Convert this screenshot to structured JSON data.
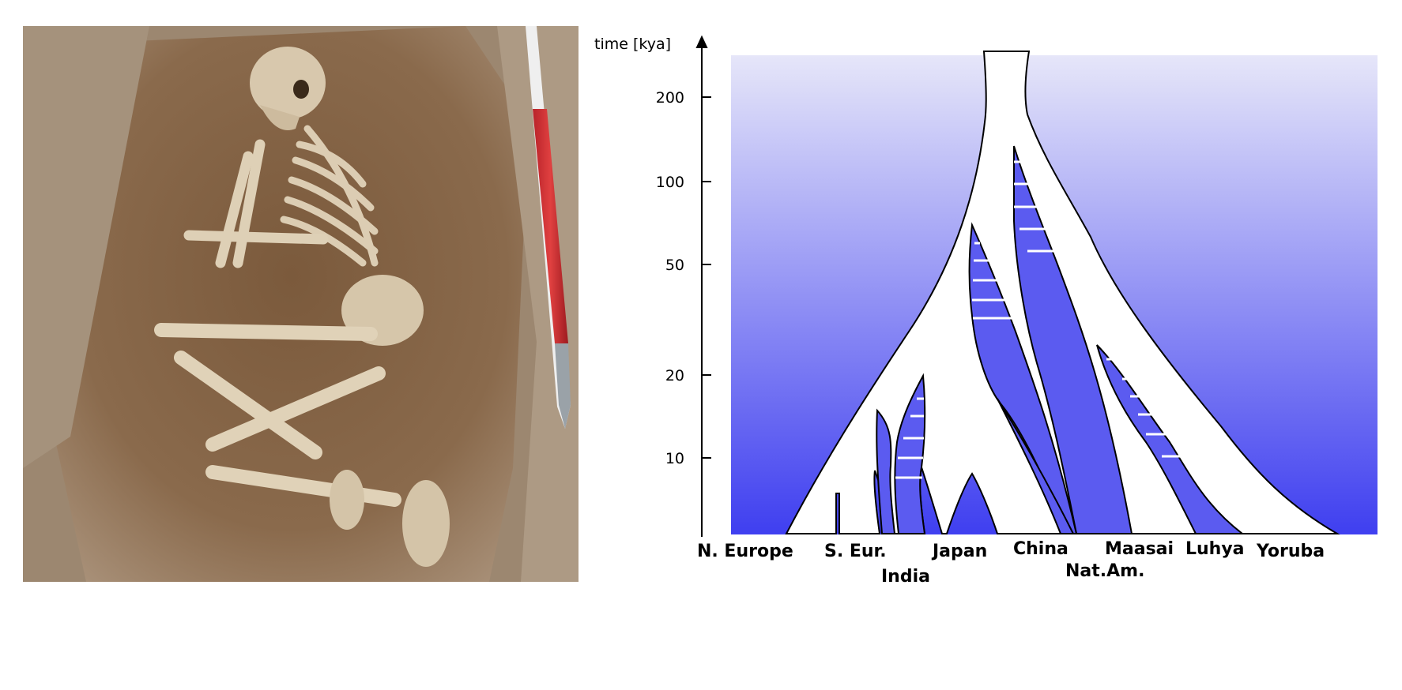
{
  "figure": {
    "photo": {
      "icon": "excavated-skeleton-in-grave-with-scale-rod"
    },
    "tree": {
      "axis": {
        "title": "time [kya]",
        "ticks": [
          "200",
          "100",
          "50",
          "20",
          "10"
        ]
      },
      "populations": [
        "N. Europe",
        "S. Eur.",
        "India",
        "Japan",
        "China",
        "Nat.Am.",
        "Maasai",
        "Luhya",
        "Yoruba"
      ],
      "colors": {
        "background_top": "#e6e6f9",
        "background_bottom": "#3f3ff0",
        "branch": "#ffffff",
        "outline": "#000000"
      }
    }
  }
}
